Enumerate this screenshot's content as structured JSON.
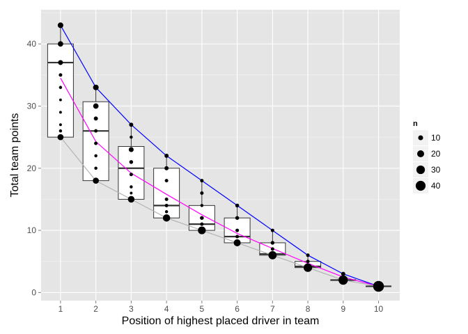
{
  "chart_data": {
    "type": "box",
    "xlabel": "Position of highest placed driver in team",
    "ylabel": "Total team points",
    "x_ticks": [
      1,
      2,
      3,
      4,
      5,
      6,
      7,
      8,
      9,
      10
    ],
    "y_ticks": [
      0,
      10,
      20,
      30,
      40
    ],
    "xlim": [
      0.45,
      10.6
    ],
    "ylim": [
      -1.3,
      45.5
    ],
    "grid": true,
    "boxes": [
      {
        "x": 1,
        "q1": 25,
        "median": 37,
        "q3": 40,
        "whisker_low": 25,
        "whisker_high": 43
      },
      {
        "x": 2,
        "q1": 18,
        "median": 26,
        "q3": 30.7,
        "whisker_low": 18,
        "whisker_high": 33
      },
      {
        "x": 3,
        "q1": 15,
        "median": 20,
        "q3": 23.5,
        "whisker_low": 15,
        "whisker_high": 27
      },
      {
        "x": 4,
        "q1": 12,
        "median": 14,
        "q3": 20,
        "whisker_low": 12,
        "whisker_high": 22
      },
      {
        "x": 5,
        "q1": 10,
        "median": 11,
        "q3": 14,
        "whisker_low": 10,
        "whisker_high": 18
      },
      {
        "x": 6,
        "q1": 8,
        "median": 9,
        "q3": 12,
        "whisker_low": 8,
        "whisker_high": 14
      },
      {
        "x": 7,
        "q1": 6,
        "median": 6.2,
        "q3": 8,
        "whisker_low": 6,
        "whisker_high": 10
      },
      {
        "x": 8,
        "q1": 4,
        "median": 4.2,
        "q3": 5,
        "whisker_low": 4,
        "whisker_high": 6
      },
      {
        "x": 9,
        "q1": 2,
        "median": 2,
        "q3": 2,
        "whisker_low": 2,
        "whisker_high": 3
      },
      {
        "x": 10,
        "q1": 1,
        "median": 1,
        "q3": 1,
        "whisker_low": 1,
        "whisker_high": 1
      }
    ],
    "points": [
      {
        "x": 1,
        "y": 43,
        "n": 13
      },
      {
        "x": 1,
        "y": 40,
        "n": 12
      },
      {
        "x": 1,
        "y": 37,
        "n": 10
      },
      {
        "x": 1,
        "y": 35,
        "n": 5
      },
      {
        "x": 1,
        "y": 33,
        "n": 4
      },
      {
        "x": 1,
        "y": 31,
        "n": 3
      },
      {
        "x": 1,
        "y": 29,
        "n": 3
      },
      {
        "x": 1,
        "y": 27,
        "n": 3
      },
      {
        "x": 1,
        "y": 26,
        "n": 4
      },
      {
        "x": 1,
        "y": 25,
        "n": 15
      },
      {
        "x": 2,
        "y": 33,
        "n": 13
      },
      {
        "x": 2,
        "y": 30,
        "n": 12
      },
      {
        "x": 2,
        "y": 28,
        "n": 7
      },
      {
        "x": 2,
        "y": 26,
        "n": 5
      },
      {
        "x": 2,
        "y": 24,
        "n": 5
      },
      {
        "x": 2,
        "y": 22,
        "n": 4
      },
      {
        "x": 2,
        "y": 20,
        "n": 4
      },
      {
        "x": 2,
        "y": 18,
        "n": 15
      },
      {
        "x": 3,
        "y": 27,
        "n": 7
      },
      {
        "x": 3,
        "y": 25,
        "n": 4
      },
      {
        "x": 3,
        "y": 23,
        "n": 10
      },
      {
        "x": 3,
        "y": 21,
        "n": 6
      },
      {
        "x": 3,
        "y": 19,
        "n": 5
      },
      {
        "x": 3,
        "y": 17,
        "n": 4
      },
      {
        "x": 3,
        "y": 16,
        "n": 3
      },
      {
        "x": 3,
        "y": 15,
        "n": 18
      },
      {
        "x": 4,
        "y": 22,
        "n": 7
      },
      {
        "x": 4,
        "y": 20,
        "n": 7
      },
      {
        "x": 4,
        "y": 18,
        "n": 5
      },
      {
        "x": 4,
        "y": 15,
        "n": 5
      },
      {
        "x": 4,
        "y": 14,
        "n": 5
      },
      {
        "x": 4,
        "y": 13,
        "n": 4
      },
      {
        "x": 4,
        "y": 12,
        "n": 22
      },
      {
        "x": 5,
        "y": 18,
        "n": 5
      },
      {
        "x": 5,
        "y": 16,
        "n": 5
      },
      {
        "x": 5,
        "y": 14,
        "n": 4
      },
      {
        "x": 5,
        "y": 12,
        "n": 6
      },
      {
        "x": 5,
        "y": 11,
        "n": 5
      },
      {
        "x": 5,
        "y": 10,
        "n": 25
      },
      {
        "x": 6,
        "y": 14,
        "n": 6
      },
      {
        "x": 6,
        "y": 12,
        "n": 6
      },
      {
        "x": 6,
        "y": 10,
        "n": 5
      },
      {
        "x": 6,
        "y": 9,
        "n": 5
      },
      {
        "x": 6,
        "y": 8,
        "n": 20
      },
      {
        "x": 7,
        "y": 10,
        "n": 5
      },
      {
        "x": 7,
        "y": 8,
        "n": 6
      },
      {
        "x": 7,
        "y": 7,
        "n": 5
      },
      {
        "x": 7,
        "y": 6,
        "n": 28
      },
      {
        "x": 8,
        "y": 6,
        "n": 5
      },
      {
        "x": 8,
        "y": 5,
        "n": 5
      },
      {
        "x": 8,
        "y": 4,
        "n": 30
      },
      {
        "x": 9,
        "y": 3,
        "n": 7
      },
      {
        "x": 9,
        "y": 2,
        "n": 36
      },
      {
        "x": 10,
        "y": 1,
        "n": 48
      }
    ],
    "lines": [
      {
        "color": "#0000ff",
        "x": [
          1,
          2,
          3,
          4,
          5,
          6,
          7,
          8,
          9,
          10
        ],
        "y": [
          43,
          33,
          27,
          22,
          18,
          14,
          10,
          6,
          3,
          1
        ]
      },
      {
        "color": "#ff00ff",
        "x": [
          1,
          2,
          3,
          4,
          5,
          6,
          7,
          8,
          9,
          10
        ],
        "y": [
          34.5,
          24.3,
          19.2,
          15.8,
          12.5,
          9.5,
          7.1,
          4.7,
          2.5,
          1
        ]
      },
      {
        "color": "#b3b3b3",
        "x": [
          1,
          2,
          3,
          4,
          5,
          6,
          7,
          8,
          9,
          10
        ],
        "y": [
          25,
          18,
          15,
          12,
          10,
          8,
          6,
          4,
          2,
          1
        ]
      }
    ],
    "legend": {
      "title": "n",
      "placement": "right",
      "entries": [
        {
          "label": "10",
          "n": 10
        },
        {
          "label": "20",
          "n": 20
        },
        {
          "label": "30",
          "n": 30
        },
        {
          "label": "40",
          "n": 40
        }
      ]
    }
  }
}
